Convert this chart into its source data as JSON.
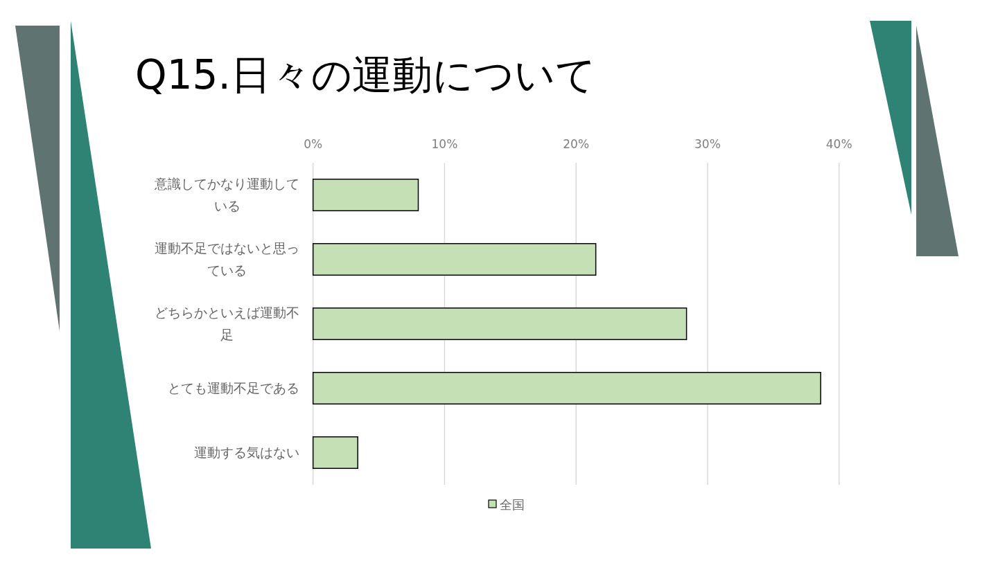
{
  "chart_data": {
    "type": "bar",
    "orientation": "horizontal",
    "title": "Q15.日々の運動について",
    "categories": [
      "意識してかなり運動している",
      "運動不足ではないと思っている",
      "どちらかといえば運動不足",
      "とても運動不足である",
      "運動する気はない"
    ],
    "series": [
      {
        "name": "全国",
        "color": "#c5e0b4",
        "values": [
          8.0,
          21.5,
          28.4,
          38.6,
          3.4
        ]
      }
    ],
    "xlim": [
      0,
      40
    ],
    "xticks": [
      {
        "value": 0,
        "label": "0%"
      },
      {
        "value": 10,
        "label": "10%"
      },
      {
        "value": 20,
        "label": "20%"
      },
      {
        "value": 30,
        "label": "30%"
      },
      {
        "value": 40,
        "label": "40%"
      }
    ],
    "grid": "x",
    "legend": "bottom"
  }
}
